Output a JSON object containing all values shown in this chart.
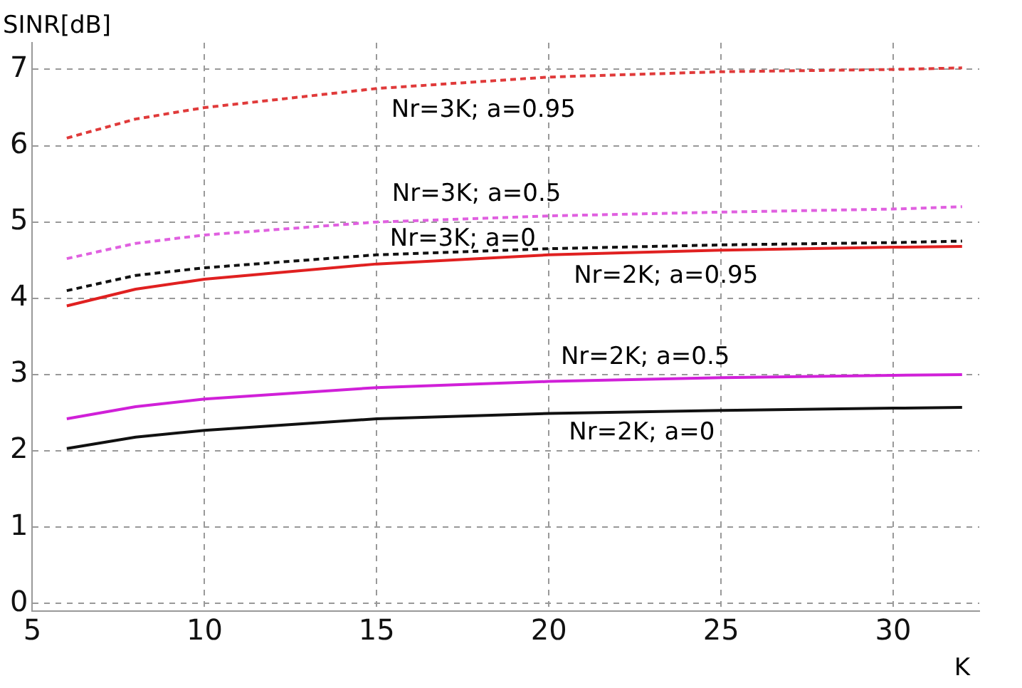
{
  "chart_data": {
    "type": "line",
    "ylabel": "SINR[dB]",
    "xlabel": "K",
    "x": [
      6,
      8,
      10,
      15,
      20,
      25,
      30,
      32
    ],
    "series": [
      {
        "name": "Nr=3K; a=0.95",
        "color": "#e03a3a",
        "line_style": "dashed",
        "values": [
          6.1,
          6.35,
          6.5,
          6.75,
          6.9,
          6.97,
          7.0,
          7.02
        ]
      },
      {
        "name": "Nr=3K; a=0.5",
        "color": "#e060e0",
        "line_style": "dashed",
        "values": [
          4.52,
          4.72,
          4.83,
          5.0,
          5.08,
          5.13,
          5.17,
          5.2
        ]
      },
      {
        "name": "Nr=3K; a=0",
        "color": "#111111",
        "line_style": "dashed",
        "values": [
          4.1,
          4.3,
          4.4,
          4.57,
          4.65,
          4.7,
          4.73,
          4.75
        ]
      },
      {
        "name": "Nr=2K; a=0.95",
        "color": "#e02020",
        "line_style": "solid",
        "values": [
          3.9,
          4.12,
          4.25,
          4.45,
          4.57,
          4.63,
          4.67,
          4.68
        ]
      },
      {
        "name": "Nr=2K; a=0.5",
        "color": "#d020d8",
        "line_style": "solid",
        "values": [
          2.42,
          2.58,
          2.68,
          2.83,
          2.91,
          2.96,
          2.99,
          3.0
        ]
      },
      {
        "name": "Nr=2K; a=0",
        "color": "#111111",
        "line_style": "solid",
        "values": [
          2.03,
          2.18,
          2.27,
          2.42,
          2.49,
          2.53,
          2.56,
          2.57
        ]
      }
    ],
    "xlim": [
      5,
      32.5
    ],
    "ylim": [
      -0.1,
      7.35
    ],
    "xticks": [
      5,
      10,
      15,
      20,
      25,
      30
    ],
    "yticks": [
      0,
      1,
      2,
      3,
      4,
      5,
      6,
      7
    ],
    "grid": true,
    "legend": false,
    "marker": "none"
  }
}
